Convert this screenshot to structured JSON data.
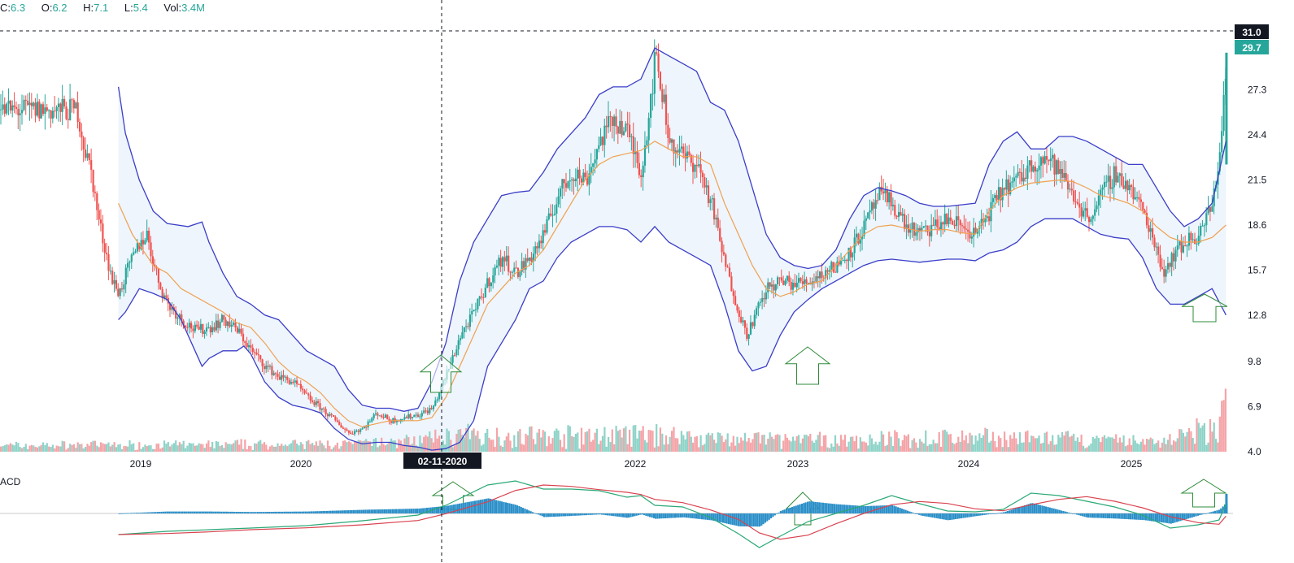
{
  "legend": {
    "close_label": "C:",
    "close_value": "6.3",
    "open_label": "O:",
    "open_value": "6.2",
    "high_label": "H:",
    "high_value": "7.1",
    "low_label": "L:",
    "low_value": "5.4",
    "vol_label": "Vol:",
    "vol_value": "3.4M"
  },
  "macd_label": "ACD",
  "crosshair": {
    "date": "02-11-2020",
    "price": "31.0"
  },
  "last_price": "29.7",
  "colors": {
    "up": "#26a69a",
    "down": "#ef5350",
    "vol_up": "#8fd3c8",
    "vol_down": "#f4a4a8",
    "band": "#3b3ec8",
    "band_fill": "#eef5fc",
    "ma": "#f0a050",
    "arrow": "#2e8b3a",
    "macd_line": "#2aa876",
    "signal_line": "#d9434f",
    "hist": "#2b8fc8"
  },
  "chart_data": {
    "type": "candlestick",
    "y_ticks": [
      "31.0",
      "29.7",
      "27.3",
      "24.4",
      "21.5",
      "18.6",
      "15.7",
      "12.8",
      "9.8",
      "6.9",
      "4.0"
    ],
    "x_ticks": [
      "2019",
      "2020",
      "2022",
      "2023",
      "2024",
      "2025"
    ],
    "ylim": [
      4.0,
      31.0
    ],
    "price_path": [
      [
        2018.55,
        26.0
      ],
      [
        2018.6,
        23.5
      ],
      [
        2018.65,
        22.0
      ],
      [
        2018.7,
        19.0
      ],
      [
        2018.75,
        17.0
      ],
      [
        2018.8,
        15.0
      ],
      [
        2018.85,
        14.2
      ],
      [
        2018.9,
        15.5
      ],
      [
        2018.95,
        16.5
      ],
      [
        2019.0,
        17.5
      ],
      [
        2019.05,
        18.0
      ],
      [
        2019.1,
        16.0
      ],
      [
        2019.15,
        14.5
      ],
      [
        2019.2,
        13.5
      ],
      [
        2019.3,
        12.5
      ],
      [
        2019.4,
        11.8
      ],
      [
        2019.5,
        12.0
      ],
      [
        2019.6,
        12.5
      ],
      [
        2019.7,
        11.8
      ],
      [
        2019.8,
        10.5
      ],
      [
        2019.9,
        9.5
      ],
      [
        2020.0,
        8.8
      ],
      [
        2020.1,
        8.5
      ],
      [
        2020.2,
        7.5
      ],
      [
        2020.3,
        6.8
      ],
      [
        2020.4,
        6.0
      ],
      [
        2020.5,
        5.2
      ],
      [
        2020.6,
        5.5
      ],
      [
        2020.7,
        6.5
      ],
      [
        2020.8,
        6.0
      ],
      [
        2020.9,
        6.2
      ],
      [
        2021.0,
        6.4
      ],
      [
        2021.1,
        6.8
      ],
      [
        2021.2,
        9.0
      ],
      [
        2021.3,
        11.5
      ],
      [
        2021.4,
        13.0
      ],
      [
        2021.5,
        15.0
      ],
      [
        2021.6,
        16.5
      ],
      [
        2021.7,
        15.5
      ],
      [
        2021.8,
        16.5
      ],
      [
        2021.9,
        18.0
      ],
      [
        2022.0,
        20.5
      ],
      [
        2022.1,
        22.0
      ],
      [
        2022.2,
        21.5
      ],
      [
        2022.3,
        24.0
      ],
      [
        2022.4,
        25.5
      ],
      [
        2022.5,
        24.5
      ],
      [
        2022.6,
        22.0
      ],
      [
        2022.7,
        29.5
      ],
      [
        2022.75,
        27.0
      ],
      [
        2022.8,
        24.0
      ],
      [
        2022.9,
        23.0
      ],
      [
        2023.0,
        22.5
      ],
      [
        2023.1,
        20.0
      ],
      [
        2023.2,
        16.0
      ],
      [
        2023.3,
        13.0
      ],
      [
        2023.35,
        11.5
      ],
      [
        2023.4,
        12.5
      ],
      [
        2023.5,
        14.5
      ],
      [
        2023.6,
        15.0
      ],
      [
        2023.7,
        14.8
      ],
      [
        2023.8,
        15.0
      ],
      [
        2023.9,
        15.5
      ],
      [
        2024.0,
        16.0
      ],
      [
        2024.1,
        17.0
      ],
      [
        2024.2,
        18.5
      ],
      [
        2024.3,
        20.5
      ],
      [
        2024.4,
        20.0
      ],
      [
        2024.5,
        18.5
      ],
      [
        2024.6,
        18.0
      ],
      [
        2024.7,
        18.5
      ],
      [
        2024.8,
        19.0
      ],
      [
        2024.9,
        18.5
      ],
      [
        2025.0,
        18.0
      ],
      [
        2025.1,
        19.5
      ],
      [
        2025.2,
        21.0
      ],
      [
        2025.3,
        21.5
      ],
      [
        2025.4,
        22.5
      ],
      [
        2025.5,
        23.0
      ],
      [
        2025.6,
        22.0
      ],
      [
        2025.7,
        20.5
      ],
      [
        2025.8,
        19.0
      ],
      [
        2025.9,
        20.5
      ],
      [
        2026.0,
        22.0
      ],
      [
        2026.1,
        21.0
      ],
      [
        2026.2,
        19.5
      ],
      [
        2026.3,
        17.0
      ],
      [
        2026.35,
        15.5
      ],
      [
        2026.4,
        16.5
      ],
      [
        2026.5,
        17.5
      ],
      [
        2026.6,
        18.0
      ],
      [
        2026.7,
        20.0
      ],
      [
        2026.75,
        23.5
      ],
      [
        2026.8,
        29.7
      ]
    ],
    "upper_band": [
      [
        2018.85,
        27.5
      ],
      [
        2018.9,
        24.5
      ],
      [
        2019.0,
        21.5
      ],
      [
        2019.1,
        19.5
      ],
      [
        2019.2,
        18.7
      ],
      [
        2019.35,
        18.5
      ],
      [
        2019.45,
        18.8
      ],
      [
        2019.5,
        17.5
      ],
      [
        2019.6,
        15.5
      ],
      [
        2019.7,
        14.0
      ],
      [
        2019.8,
        13.5
      ],
      [
        2019.9,
        12.8
      ],
      [
        2020.0,
        12.5
      ],
      [
        2020.1,
        11.5
      ],
      [
        2020.2,
        10.5
      ],
      [
        2020.3,
        10.0
      ],
      [
        2020.4,
        9.5
      ],
      [
        2020.5,
        8.0
      ],
      [
        2020.6,
        7.0
      ],
      [
        2020.7,
        6.8
      ],
      [
        2020.8,
        6.8
      ],
      [
        2020.9,
        6.6
      ],
      [
        2021.0,
        6.8
      ],
      [
        2021.1,
        8.5
      ],
      [
        2021.2,
        11.0
      ],
      [
        2021.3,
        15.0
      ],
      [
        2021.4,
        17.5
      ],
      [
        2021.5,
        19.0
      ],
      [
        2021.6,
        20.5
      ],
      [
        2021.7,
        20.7
      ],
      [
        2021.8,
        20.8
      ],
      [
        2021.9,
        22.0
      ],
      [
        2022.0,
        23.5
      ],
      [
        2022.1,
        24.5
      ],
      [
        2022.2,
        25.5
      ],
      [
        2022.3,
        27.0
      ],
      [
        2022.4,
        27.5
      ],
      [
        2022.5,
        27.5
      ],
      [
        2022.6,
        28.0
      ],
      [
        2022.7,
        30.0
      ],
      [
        2022.8,
        29.5
      ],
      [
        2022.9,
        29.0
      ],
      [
        2023.0,
        28.5
      ],
      [
        2023.1,
        26.5
      ],
      [
        2023.2,
        26.0
      ],
      [
        2023.3,
        24.0
      ],
      [
        2023.4,
        21.0
      ],
      [
        2023.5,
        18.0
      ],
      [
        2023.6,
        16.5
      ],
      [
        2023.7,
        16.0
      ],
      [
        2023.8,
        15.8
      ],
      [
        2023.9,
        16.0
      ],
      [
        2024.0,
        17.0
      ],
      [
        2024.1,
        19.0
      ],
      [
        2024.2,
        20.5
      ],
      [
        2024.3,
        21.0
      ],
      [
        2024.4,
        20.8
      ],
      [
        2024.5,
        20.5
      ],
      [
        2024.6,
        20.0
      ],
      [
        2024.7,
        19.8
      ],
      [
        2024.8,
        19.8
      ],
      [
        2024.9,
        19.9
      ],
      [
        2025.0,
        20.0
      ],
      [
        2025.1,
        22.5
      ],
      [
        2025.2,
        24.0
      ],
      [
        2025.3,
        24.6
      ],
      [
        2025.4,
        23.5
      ],
      [
        2025.5,
        23.5
      ],
      [
        2025.6,
        24.3
      ],
      [
        2025.7,
        24.3
      ],
      [
        2025.8,
        24.0
      ],
      [
        2025.9,
        23.5
      ],
      [
        2026.0,
        23.0
      ],
      [
        2026.1,
        22.5
      ],
      [
        2026.2,
        22.5
      ],
      [
        2026.3,
        21.0
      ],
      [
        2026.4,
        19.5
      ],
      [
        2026.5,
        18.5
      ],
      [
        2026.6,
        19.0
      ],
      [
        2026.7,
        20.0
      ],
      [
        2026.8,
        24.0
      ]
    ],
    "lower_band": [
      [
        2018.85,
        12.5
      ],
      [
        2018.9,
        13.0
      ],
      [
        2019.0,
        14.5
      ],
      [
        2019.1,
        14.2
      ],
      [
        2019.2,
        13.8
      ],
      [
        2019.3,
        12.5
      ],
      [
        2019.4,
        10.5
      ],
      [
        2019.45,
        9.5
      ],
      [
        2019.5,
        10.0
      ],
      [
        2019.6,
        10.5
      ],
      [
        2019.7,
        10.5
      ],
      [
        2019.75,
        10.8
      ],
      [
        2019.8,
        10.3
      ],
      [
        2019.9,
        8.5
      ],
      [
        2020.0,
        7.5
      ],
      [
        2020.1,
        7.0
      ],
      [
        2020.2,
        6.8
      ],
      [
        2020.3,
        6.5
      ],
      [
        2020.4,
        5.5
      ],
      [
        2020.5,
        4.8
      ],
      [
        2020.6,
        4.5
      ],
      [
        2020.7,
        4.6
      ],
      [
        2020.8,
        4.6
      ],
      [
        2020.9,
        4.4
      ],
      [
        2021.0,
        4.3
      ],
      [
        2021.1,
        4.1
      ],
      [
        2021.2,
        4.2
      ],
      [
        2021.3,
        4.6
      ],
      [
        2021.4,
        6.0
      ],
      [
        2021.5,
        9.5
      ],
      [
        2021.6,
        11.0
      ],
      [
        2021.7,
        12.5
      ],
      [
        2021.8,
        14.5
      ],
      [
        2021.9,
        15.0
      ],
      [
        2022.0,
        16.5
      ],
      [
        2022.1,
        17.5
      ],
      [
        2022.2,
        18.0
      ],
      [
        2022.3,
        18.5
      ],
      [
        2022.4,
        18.5
      ],
      [
        2022.5,
        18.3
      ],
      [
        2022.6,
        17.5
      ],
      [
        2022.65,
        18.0
      ],
      [
        2022.7,
        18.5
      ],
      [
        2022.8,
        17.5
      ],
      [
        2022.9,
        17.0
      ],
      [
        2023.0,
        16.5
      ],
      [
        2023.1,
        16.0
      ],
      [
        2023.2,
        13.5
      ],
      [
        2023.3,
        10.5
      ],
      [
        2023.4,
        9.2
      ],
      [
        2023.5,
        9.5
      ],
      [
        2023.6,
        11.5
      ],
      [
        2023.7,
        13.0
      ],
      [
        2023.8,
        13.8
      ],
      [
        2023.9,
        14.5
      ],
      [
        2024.0,
        15.0
      ],
      [
        2024.1,
        15.5
      ],
      [
        2024.2,
        16.0
      ],
      [
        2024.3,
        16.3
      ],
      [
        2024.4,
        16.4
      ],
      [
        2024.5,
        16.3
      ],
      [
        2024.6,
        16.2
      ],
      [
        2024.7,
        16.3
      ],
      [
        2024.8,
        16.4
      ],
      [
        2024.9,
        16.4
      ],
      [
        2025.0,
        16.3
      ],
      [
        2025.1,
        16.8
      ],
      [
        2025.2,
        17.0
      ],
      [
        2025.3,
        17.5
      ],
      [
        2025.4,
        18.5
      ],
      [
        2025.5,
        19.0
      ],
      [
        2025.6,
        19.0
      ],
      [
        2025.7,
        19.0
      ],
      [
        2025.8,
        18.5
      ],
      [
        2025.9,
        18.0
      ],
      [
        2026.0,
        17.8
      ],
      [
        2026.1,
        17.7
      ],
      [
        2026.2,
        16.5
      ],
      [
        2026.3,
        14.5
      ],
      [
        2026.4,
        13.5
      ],
      [
        2026.5,
        13.5
      ],
      [
        2026.6,
        14.0
      ],
      [
        2026.7,
        14.5
      ],
      [
        2026.8,
        12.8
      ]
    ],
    "middle_band": [
      [
        2018.85,
        20.0
      ],
      [
        2018.95,
        18.0
      ],
      [
        2019.1,
        16.0
      ],
      [
        2019.2,
        15.5
      ],
      [
        2019.3,
        14.5
      ],
      [
        2019.5,
        13.5
      ],
      [
        2019.6,
        13.0
      ],
      [
        2019.7,
        12.3
      ],
      [
        2019.8,
        12.0
      ],
      [
        2019.9,
        11.0
      ],
      [
        2020.0,
        9.8
      ],
      [
        2020.1,
        9.0
      ],
      [
        2020.2,
        8.5
      ],
      [
        2020.3,
        7.8
      ],
      [
        2020.4,
        6.8
      ],
      [
        2020.5,
        6.0
      ],
      [
        2020.6,
        5.6
      ],
      [
        2020.7,
        5.8
      ],
      [
        2020.8,
        6.0
      ],
      [
        2020.9,
        6.0
      ],
      [
        2021.0,
        6.0
      ],
      [
        2021.1,
        6.2
      ],
      [
        2021.2,
        7.5
      ],
      [
        2021.3,
        9.5
      ],
      [
        2021.4,
        11.5
      ],
      [
        2021.5,
        13.5
      ],
      [
        2021.6,
        14.5
      ],
      [
        2021.7,
        15.5
      ],
      [
        2021.8,
        16.0
      ],
      [
        2021.9,
        17.0
      ],
      [
        2022.0,
        18.5
      ],
      [
        2022.1,
        20.0
      ],
      [
        2022.2,
        21.5
      ],
      [
        2022.3,
        22.5
      ],
      [
        2022.4,
        23.0
      ],
      [
        2022.5,
        23.2
      ],
      [
        2022.6,
        23.4
      ],
      [
        2022.7,
        24.0
      ],
      [
        2022.8,
        23.5
      ],
      [
        2022.9,
        23.0
      ],
      [
        2023.0,
        23.0
      ],
      [
        2023.1,
        22.5
      ],
      [
        2023.2,
        20.0
      ],
      [
        2023.3,
        18.0
      ],
      [
        2023.4,
        16.0
      ],
      [
        2023.5,
        14.5
      ],
      [
        2023.6,
        14.0
      ],
      [
        2023.7,
        14.3
      ],
      [
        2023.8,
        14.8
      ],
      [
        2023.9,
        15.0
      ],
      [
        2024.0,
        16.0
      ],
      [
        2024.1,
        17.0
      ],
      [
        2024.2,
        18.0
      ],
      [
        2024.3,
        18.5
      ],
      [
        2024.4,
        18.6
      ],
      [
        2024.5,
        18.4
      ],
      [
        2024.6,
        18.2
      ],
      [
        2024.7,
        18.3
      ],
      [
        2024.8,
        18.3
      ],
      [
        2024.9,
        18.1
      ],
      [
        2025.0,
        18.0
      ],
      [
        2025.1,
        19.5
      ],
      [
        2025.2,
        20.5
      ],
      [
        2025.3,
        21.0
      ],
      [
        2025.4,
        21.3
      ],
      [
        2025.5,
        21.4
      ],
      [
        2025.6,
        21.5
      ],
      [
        2025.7,
        21.4
      ],
      [
        2025.8,
        21.0
      ],
      [
        2025.9,
        20.5
      ],
      [
        2026.0,
        20.3
      ],
      [
        2026.1,
        20.0
      ],
      [
        2026.2,
        19.5
      ],
      [
        2026.3,
        18.5
      ],
      [
        2026.4,
        17.8
      ],
      [
        2026.5,
        17.5
      ],
      [
        2026.6,
        17.5
      ],
      [
        2026.7,
        17.8
      ],
      [
        2026.8,
        18.6
      ]
    ]
  }
}
